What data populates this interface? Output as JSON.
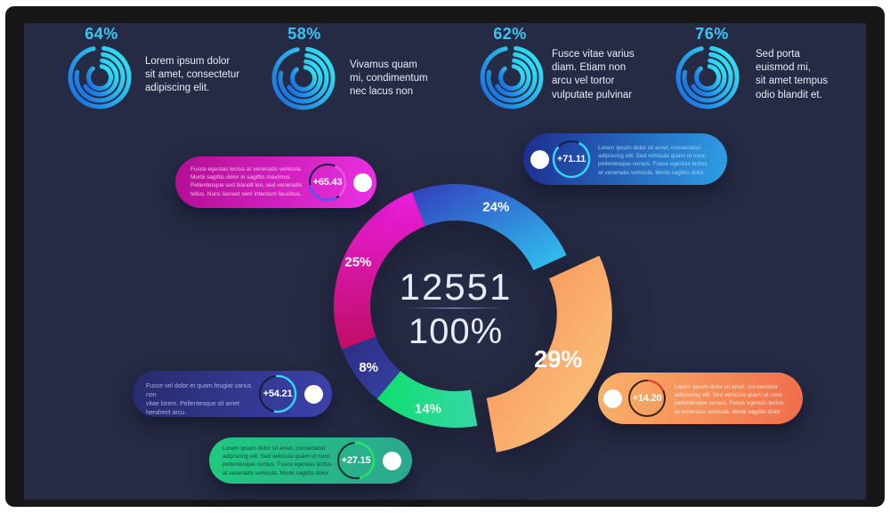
{
  "frame": {
    "bezel_color": "#171717",
    "screen_color": "#262b45",
    "outer_color": "#ffffff"
  },
  "chart_data": [
    {
      "type": "pie",
      "subtype": "exploded-donut",
      "title": "",
      "center_value": "12551",
      "center_percent": "100%",
      "start_angle": -21,
      "segments": [
        {
          "label": "24%",
          "value": 24,
          "color_from": "#333cbd",
          "color_to": "#2fc8f2",
          "exploded": false
        },
        {
          "label": "29%",
          "value": 29,
          "color_from": "#f68d59",
          "color_to": "#fdc97d",
          "exploded": true
        },
        {
          "label": "14%",
          "value": 14,
          "color_from": "#0ddf6d",
          "color_to": "#37d6a6",
          "exploded": false
        },
        {
          "label": "8%",
          "value": 8,
          "color_from": "#2a2d82",
          "color_to": "#3a41a4",
          "exploded": false
        },
        {
          "label": "25%",
          "value": 25,
          "color_from": "#ea1ede",
          "color_to": "#c00d64",
          "exploded": false
        }
      ]
    },
    {
      "type": "pie",
      "subtype": "radial-progress-gauges",
      "unit": "%",
      "colors": {
        "icon_from": "#1b6fe0",
        "icon_to": "#32e9f5",
        "percent": "#3cc5f2",
        "text": "#e9ecf7"
      },
      "items": [
        {
          "percent": "64%",
          "value": 64,
          "text": "Lorem ipsum dolor\nsit amet, consectetur\nadipiscing elit."
        },
        {
          "percent": "58%",
          "value": 58,
          "text": "Vivamus quam\nmi, condimentum\nnec lacus non"
        },
        {
          "percent": "62%",
          "value": 62,
          "text": "Fusce vitae varius\ndiam.  Etiam non\narcu vel tortor\nvulputate pulvinar"
        },
        {
          "percent": "76%",
          "value": 76,
          "text": "Sed porta\neuismod mi,\nsit amet tempus\nodio blandit et."
        }
      ]
    }
  ],
  "callouts": [
    {
      "value": "+65.43",
      "text": "Fusce egestas lectus at venenatis vehicula.\nMorbi sagittis dolor in sagittis maximus.\nPellentesque sed blandit leo, sed venenatis\ntellus. Nunc laoreet sem interdum faucibus.",
      "bg_from": "#b30e92",
      "bg_to": "#ea31e4",
      "text_color": "rgba(255,206,243,0.9)",
      "ring": {
        "base": "#1f1d44",
        "arcs": [
          {
            "color": "#ee55e2",
            "start": 25,
            "sweep": 115
          },
          {
            "color": "#4a5af2",
            "start": 150,
            "sweep": 112
          }
        ]
      }
    },
    {
      "value": "+71.11",
      "text": "Lorem ipsum dolor sit amet, consectetur\nadipiscing elit. Sed vehicula quam ut nunc\npellentesque cursus. Fusce egestas lectus\nat venenatis vehicula. Morbi sagittis dolor",
      "bg_from": "#1d2d90",
      "bg_to": "#2f9fe6",
      "text_color": "rgba(160,214,248,0.95)",
      "ring": {
        "base": "#152048",
        "arcs": [
          {
            "color": "#2fd9f8",
            "start": 25,
            "sweep": 288
          }
        ]
      }
    },
    {
      "value": "+54.21",
      "text": "Fusce vel dolor et quam feugiat varius non\nvitae lorem. Pellentesque sit amet\nhendrerit arcu.",
      "bg_from": "#272b6d",
      "bg_to": "#3c42aa",
      "text_color": "rgba(176,181,232,0.95)",
      "ring": {
        "base": "#191c3e",
        "arcs": [
          {
            "color": "#2fd9f8",
            "start": -6,
            "sweep": 198
          }
        ]
      }
    },
    {
      "value": "+27.15",
      "text": "Lorem ipsum dolor sit amet, consectetur\nadipiscing elit. Sed vehicula quam ut nunc\npellentesque cursus. Fusce egestas lectus\nat venenatis vehicula. Morbi sagittis dolor",
      "bg_from": "#1fc97d",
      "bg_to": "#2da78f",
      "text_color": "rgba(9,74,62,0.95)",
      "ring": {
        "base": "#173036",
        "arcs": [
          {
            "color": "#25e56e",
            "start": -4,
            "sweep": 172
          }
        ]
      }
    },
    {
      "value": "+14.20",
      "text": "Lorem ipsum dolor sit amet, consectetur\nadipiscing elit. Sed vehicula quam ut nunc\npellentesque cursus. Fusce egestas lectus\nat venenatis vehicula. Morbi sagittis dolor",
      "bg_from": "#f9b269",
      "bg_to": "#f26c4c",
      "text_color": "rgba(255,236,214,0.95)",
      "ring": {
        "base": "#3a2418",
        "arcs": [
          {
            "color": "#df4430",
            "start": 2,
            "sweep": 62
          }
        ]
      }
    }
  ]
}
